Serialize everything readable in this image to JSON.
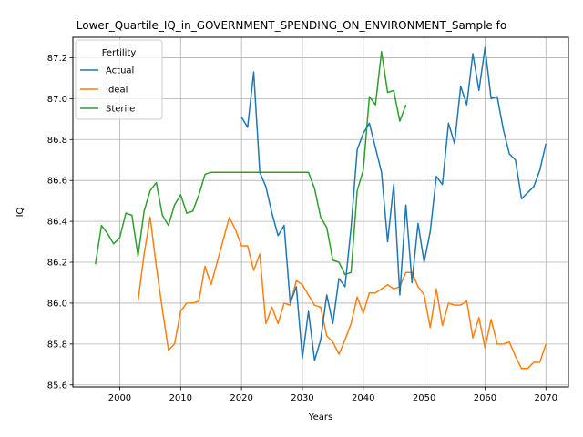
{
  "chart_data": {
    "type": "line",
    "title": "Lower_Quartile_IQ_in_GOVERNMENT_SPENDING_ON_ENVIRONMENT_Sample fo",
    "xlabel": "Years",
    "ylabel": "IQ",
    "xlim": [
      1992.3,
      2073.7
    ],
    "ylim": [
      85.59,
      87.3
    ],
    "xticks": [
      2000,
      2010,
      2020,
      2030,
      2040,
      2050,
      2060,
      2070
    ],
    "yticks": [
      85.6,
      85.8,
      86.0,
      86.2,
      86.4,
      86.6,
      86.8,
      87.0,
      87.2
    ],
    "grid": true,
    "legend": {
      "title": "Fertility",
      "position": "upper-left"
    },
    "series": [
      {
        "name": "Actual",
        "color": "#1f77b4",
        "x": [
          2020,
          2021,
          2022,
          2023,
          2024,
          2025,
          2026,
          2027,
          2028,
          2029,
          2030,
          2031,
          2032,
          2033,
          2034,
          2035,
          2036,
          2037,
          2038,
          2039,
          2040,
          2041,
          2042,
          2043,
          2044,
          2045,
          2046,
          2047,
          2048,
          2049,
          2050,
          2051,
          2052,
          2053,
          2054,
          2055,
          2056,
          2057,
          2058,
          2059,
          2060,
          2061,
          2062,
          2063,
          2064,
          2065,
          2066,
          2067,
          2068,
          2069,
          2070
        ],
        "y": [
          86.91,
          86.86,
          87.13,
          86.64,
          86.57,
          86.44,
          86.33,
          86.38,
          86.0,
          86.08,
          85.73,
          85.96,
          85.72,
          85.82,
          86.04,
          85.9,
          86.12,
          86.08,
          86.37,
          86.75,
          86.83,
          86.88,
          86.76,
          86.64,
          86.3,
          86.58,
          86.04,
          86.48,
          86.1,
          86.39,
          86.2,
          86.35,
          86.62,
          86.58,
          86.88,
          86.78,
          87.06,
          86.97,
          87.22,
          87.04,
          87.25,
          87.0,
          87.01,
          86.85,
          86.73,
          86.7,
          86.51,
          86.54,
          86.57,
          86.65,
          86.78
        ]
      },
      {
        "name": "Ideal",
        "color": "#ff7f0e",
        "x": [
          2003,
          2004,
          2005,
          2006,
          2007,
          2008,
          2009,
          2010,
          2011,
          2012,
          2013,
          2014,
          2015,
          2016,
          2017,
          2018,
          2019,
          2020,
          2021,
          2022,
          2023,
          2024,
          2025,
          2026,
          2027,
          2028,
          2029,
          2030,
          2031,
          2032,
          2033,
          2034,
          2035,
          2036,
          2037,
          2038,
          2039,
          2040,
          2041,
          2042,
          2043,
          2044,
          2045,
          2046,
          2047,
          2048,
          2049,
          2050,
          2051,
          2052,
          2053,
          2054,
          2055,
          2056,
          2057,
          2058,
          2059,
          2060,
          2061,
          2062,
          2063,
          2064,
          2065,
          2066,
          2067,
          2068,
          2069,
          2070
        ],
        "y": [
          86.01,
          86.24,
          86.42,
          86.18,
          85.97,
          85.77,
          85.8,
          85.96,
          86.0,
          86.0,
          86.01,
          86.18,
          86.09,
          86.2,
          86.31,
          86.42,
          86.36,
          86.28,
          86.28,
          86.16,
          86.24,
          85.9,
          85.98,
          85.9,
          86.0,
          85.99,
          86.11,
          86.09,
          86.04,
          85.99,
          85.98,
          85.84,
          85.81,
          85.75,
          85.82,
          85.9,
          86.03,
          85.95,
          86.05,
          86.05,
          86.07,
          86.09,
          86.07,
          86.08,
          86.15,
          86.15,
          86.08,
          86.04,
          85.88,
          86.07,
          85.89,
          86.0,
          85.99,
          85.99,
          86.01,
          85.83,
          85.93,
          85.78,
          85.92,
          85.8,
          85.8,
          85.81,
          85.74,
          85.68,
          85.68,
          85.71,
          85.71,
          85.8
        ]
      },
      {
        "name": "Sterile",
        "color": "#2ca02c",
        "x": [
          1996,
          1997,
          1998,
          1999,
          2000,
          2001,
          2002,
          2003,
          2004,
          2005,
          2006,
          2007,
          2008,
          2009,
          2010,
          2011,
          2012,
          2013,
          2014,
          2015,
          2016,
          2017,
          2018,
          2019,
          2020,
          2021,
          2022,
          2023,
          2024,
          2025,
          2026,
          2027,
          2028,
          2029,
          2030,
          2031,
          2032,
          2033,
          2034,
          2035,
          2036,
          2037,
          2038,
          2039,
          2040,
          2041,
          2042,
          2043,
          2044,
          2045,
          2046,
          2047
        ],
        "y": [
          86.19,
          86.38,
          86.34,
          86.29,
          86.32,
          86.44,
          86.43,
          86.23,
          86.45,
          86.55,
          86.59,
          86.43,
          86.38,
          86.48,
          86.53,
          86.44,
          86.45,
          86.53,
          86.63,
          86.64,
          86.64,
          86.64,
          86.64,
          86.64,
          86.64,
          86.64,
          86.64,
          86.64,
          86.64,
          86.64,
          86.64,
          86.64,
          86.64,
          86.64,
          86.64,
          86.64,
          86.56,
          86.42,
          86.37,
          86.21,
          86.2,
          86.14,
          86.15,
          86.55,
          86.65,
          87.01,
          86.97,
          87.23,
          87.03,
          87.04,
          86.89,
          86.97
        ]
      }
    ]
  }
}
